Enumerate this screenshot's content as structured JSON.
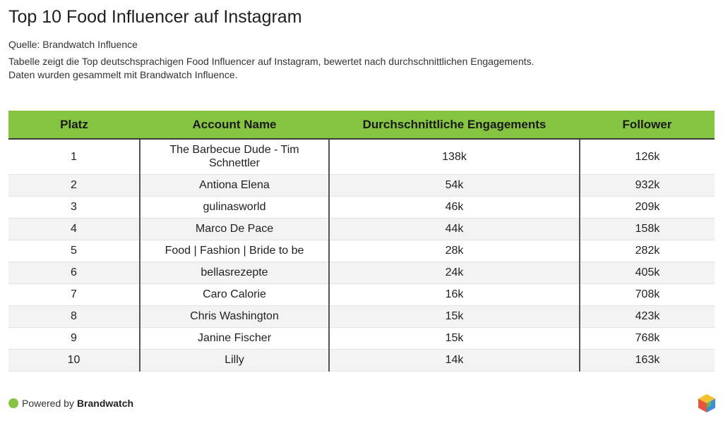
{
  "header": {
    "title": "Top 10 Food Influencer auf Instagram",
    "source": "Quelle: Brandwatch Influence",
    "description_line1": "Tabelle zeigt die Top deutschsprachigen Food Influencer auf Instagram, bewertet nach durchschnittlichen Engagements.",
    "description_line2": "Daten wurden gesammelt mit Brandwatch Influence."
  },
  "chart_data": {
    "type": "table",
    "title": "Top 10 Food Influencer auf Instagram",
    "columns": [
      "Platz",
      "Account Name",
      "Durchschnittliche Engagements",
      "Follower"
    ],
    "rows": [
      [
        "1",
        "The Barbecue Dude - Tim Schnettler",
        "138k",
        "126k"
      ],
      [
        "2",
        "Antiona Elena",
        "54k",
        "932k"
      ],
      [
        "3",
        "gulinasworld",
        "46k",
        "209k"
      ],
      [
        "4",
        "Marco De Pace",
        "44k",
        "158k"
      ],
      [
        "5",
        "Food | Fashion | Bride to be",
        "28k",
        "282k"
      ],
      [
        "6",
        "bellasrezepte",
        "24k",
        "405k"
      ],
      [
        "7",
        "Caro Calorie",
        "16k",
        "708k"
      ],
      [
        "8",
        "Chris Washington",
        "15k",
        "423k"
      ],
      [
        "9",
        "Janine Fischer",
        "15k",
        "768k"
      ],
      [
        "10",
        "Lilly",
        "14k",
        "163k"
      ]
    ],
    "header_color": "#84c441"
  },
  "footer": {
    "powered_by": "Powered by",
    "brand": "Brandwatch",
    "dot_color": "#84c441",
    "logo_icon": "brandwatch-cube-icon"
  }
}
